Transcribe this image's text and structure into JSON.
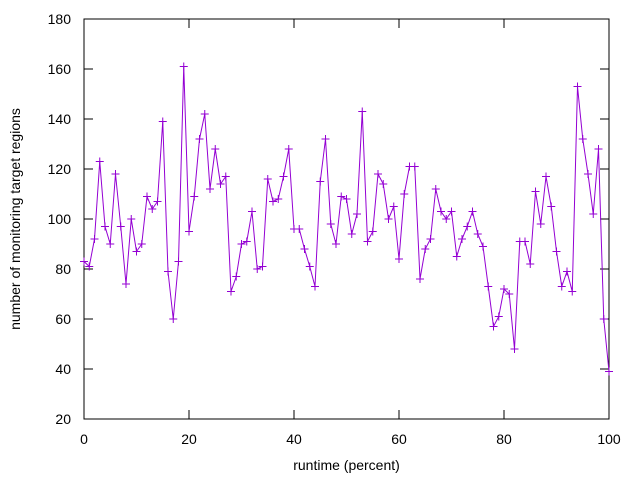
{
  "chart_data": {
    "type": "line",
    "xlabel": "runtime (percent)",
    "ylabel": "number of monitoring target regions",
    "xlim": [
      0,
      100
    ],
    "ylim": [
      20,
      180
    ],
    "x_ticks": [
      0,
      20,
      40,
      60,
      80,
      100
    ],
    "y_ticks": [
      20,
      40,
      60,
      80,
      100,
      120,
      140,
      160,
      180
    ],
    "grid": false,
    "legend": "none",
    "marker": "plus",
    "series": [
      {
        "color": "#9400d3",
        "points": [
          [
            0,
            83
          ],
          [
            1,
            81
          ],
          [
            2,
            92
          ],
          [
            3,
            123
          ],
          [
            4,
            97
          ],
          [
            5,
            90
          ],
          [
            6,
            118
          ],
          [
            7,
            97
          ],
          [
            8,
            74
          ],
          [
            9,
            100
          ],
          [
            10,
            87
          ],
          [
            11,
            90
          ],
          [
            12,
            109
          ],
          [
            13,
            104
          ],
          [
            14,
            107
          ],
          [
            15,
            139
          ],
          [
            16,
            79
          ],
          [
            17,
            60
          ],
          [
            18,
            83
          ],
          [
            19,
            161
          ],
          [
            20,
            95
          ],
          [
            21,
            109
          ],
          [
            22,
            132
          ],
          [
            23,
            142
          ],
          [
            24,
            112
          ],
          [
            25,
            128
          ],
          [
            26,
            114
          ],
          [
            27,
            117
          ],
          [
            28,
            71
          ],
          [
            29,
            77
          ],
          [
            30,
            90
          ],
          [
            31,
            91
          ],
          [
            32,
            103
          ],
          [
            33,
            80
          ],
          [
            34,
            81
          ],
          [
            35,
            116
          ],
          [
            36,
            107
          ],
          [
            37,
            108
          ],
          [
            38,
            117
          ],
          [
            39,
            128
          ],
          [
            40,
            96
          ],
          [
            41,
            96
          ],
          [
            42,
            88
          ],
          [
            43,
            81
          ],
          [
            44,
            73
          ],
          [
            45,
            115
          ],
          [
            46,
            132
          ],
          [
            47,
            98
          ],
          [
            48,
            90
          ],
          [
            49,
            109
          ],
          [
            50,
            108
          ],
          [
            51,
            94
          ],
          [
            52,
            102
          ],
          [
            53,
            143
          ],
          [
            54,
            91
          ],
          [
            55,
            95
          ],
          [
            56,
            118
          ],
          [
            57,
            114
          ],
          [
            58,
            100
          ],
          [
            59,
            105
          ],
          [
            60,
            84
          ],
          [
            61,
            110
          ],
          [
            62,
            121
          ],
          [
            63,
            121
          ],
          [
            64,
            76
          ],
          [
            65,
            88
          ],
          [
            66,
            92
          ],
          [
            67,
            112
          ],
          [
            68,
            103
          ],
          [
            69,
            100
          ],
          [
            70,
            103
          ],
          [
            71,
            85
          ],
          [
            72,
            92
          ],
          [
            73,
            97
          ],
          [
            74,
            103
          ],
          [
            75,
            94
          ],
          [
            76,
            89
          ],
          [
            77,
            73
          ],
          [
            78,
            57
          ],
          [
            79,
            61
          ],
          [
            80,
            72
          ],
          [
            81,
            70
          ],
          [
            82,
            48
          ],
          [
            83,
            91
          ],
          [
            84,
            91
          ],
          [
            85,
            82
          ],
          [
            86,
            111
          ],
          [
            87,
            98
          ],
          [
            88,
            117
          ],
          [
            89,
            105
          ],
          [
            90,
            87
          ],
          [
            91,
            73
          ],
          [
            92,
            79
          ],
          [
            93,
            71
          ],
          [
            94,
            153
          ],
          [
            95,
            132
          ],
          [
            96,
            118
          ],
          [
            97,
            102
          ],
          [
            98,
            128
          ],
          [
            99,
            60
          ],
          [
            100,
            39
          ]
        ]
      }
    ]
  }
}
